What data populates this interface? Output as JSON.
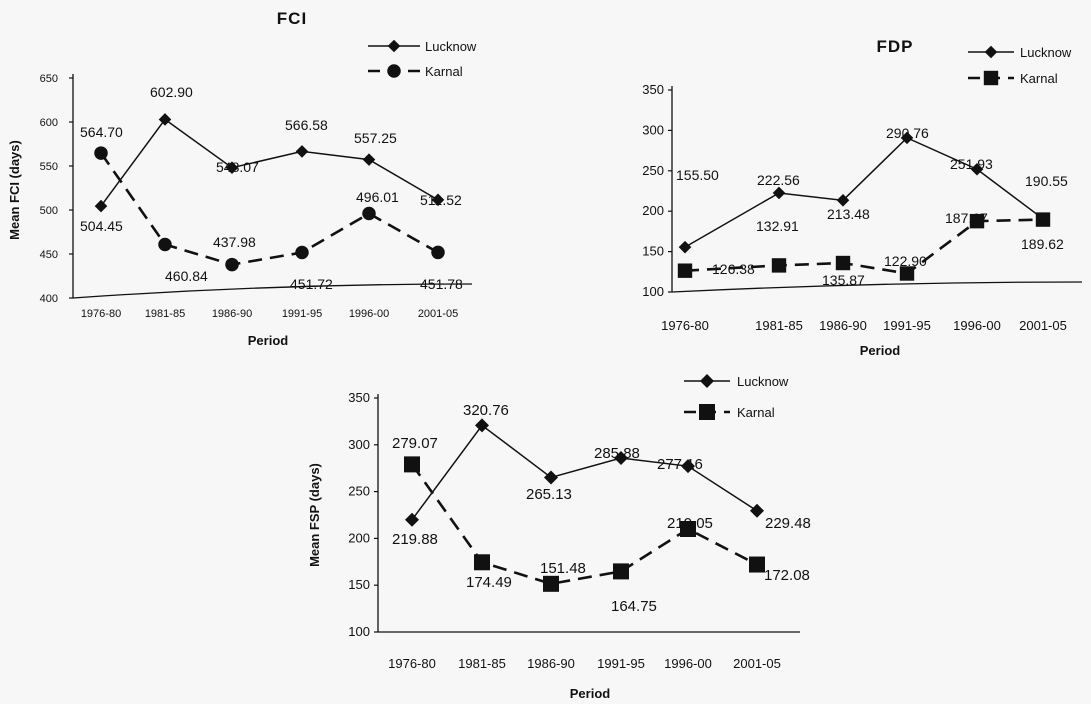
{
  "chart_data": [
    {
      "id": "fci",
      "type": "line",
      "title": "FCI",
      "xlabel": "Period",
      "ylabel": "Mean FCI (days)",
      "categories": [
        "1976-80",
        "1981-85",
        "1986-90",
        "1991-95",
        "1996-00",
        "2001-05"
      ],
      "ylim": [
        400,
        650
      ],
      "yticks": [
        400,
        450,
        500,
        550,
        600,
        650
      ],
      "grid": false,
      "legend_position": "top-right",
      "series": [
        {
          "name": "Lucknow",
          "marker": "diamond",
          "dash": "solid",
          "values": [
            504.45,
            602.9,
            548.07,
            566.58,
            557.25,
            511.52
          ],
          "labels": [
            "504.45",
            "602.90",
            "548.07",
            "566.58",
            "557.25",
            "511.52"
          ]
        },
        {
          "name": "Karnal",
          "marker": "circle",
          "dash": "dashed",
          "values": [
            564.7,
            460.84,
            437.98,
            451.72,
            496.01,
            451.78
          ],
          "labels": [
            "564.70",
            "460.84",
            "437.98",
            "451.72",
            "496.01",
            "451.78"
          ]
        }
      ]
    },
    {
      "id": "fdp",
      "type": "line",
      "title": "FDP",
      "xlabel": "Period",
      "ylabel": "",
      "categories": [
        "1976-80",
        "1981-85",
        "1986-90",
        "1991-95",
        "1996-00",
        "2001-05"
      ],
      "ylim": [
        100,
        350
      ],
      "yticks": [
        100,
        150,
        200,
        250,
        300,
        350
      ],
      "grid": false,
      "legend_position": "top-right",
      "series": [
        {
          "name": "Lucknow",
          "marker": "diamond",
          "dash": "solid",
          "values": [
            155.5,
            222.56,
            213.48,
            290.76,
            251.93,
            190.55
          ],
          "labels": [
            "155.50",
            "222.56",
            "213.48",
            "290.76",
            "251.93",
            "190.55"
          ]
        },
        {
          "name": "Karnal",
          "marker": "square",
          "dash": "dashed",
          "values": [
            126.38,
            132.91,
            135.87,
            122.9,
            187.67,
            189.62
          ],
          "labels": [
            "126.38",
            "132.91",
            "135.87",
            "122.90",
            "187.67",
            "189.62"
          ]
        }
      ]
    },
    {
      "id": "fsp",
      "type": "line",
      "title": "",
      "xlabel": "Period",
      "ylabel": "Mean FSP (days)",
      "categories": [
        "1976-80",
        "1981-85",
        "1986-90",
        "1991-95",
        "1996-00",
        "2001-05"
      ],
      "ylim": [
        100,
        350
      ],
      "yticks": [
        100,
        150,
        200,
        250,
        300,
        350
      ],
      "grid": false,
      "legend_position": "top-right",
      "series": [
        {
          "name": "Lucknow",
          "marker": "diamond",
          "dash": "solid",
          "values": [
            219.88,
            320.76,
            265.13,
            285.88,
            277.16,
            229.48
          ],
          "labels": [
            "219.88",
            "320.76",
            "265.13",
            "285.88",
            "277.16",
            "229.48"
          ]
        },
        {
          "name": "Karnal",
          "marker": "square",
          "dash": "dashed",
          "values": [
            279.07,
            174.49,
            151.48,
            164.75,
            210.05,
            172.08
          ],
          "labels": [
            "279.07",
            "174.49",
            "151.48",
            "164.75",
            "210.05",
            "172.08"
          ]
        }
      ]
    }
  ]
}
